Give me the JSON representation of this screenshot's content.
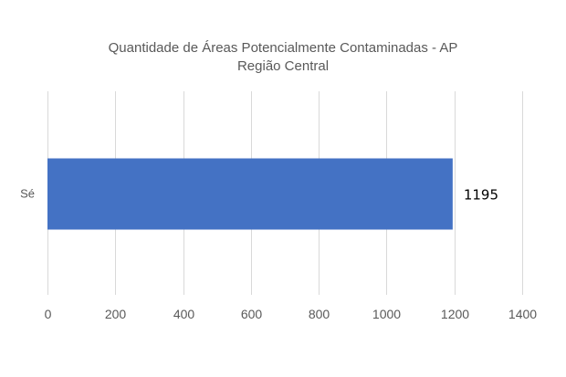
{
  "chart_data": {
    "type": "bar",
    "orientation": "horizontal",
    "title": "Quantidade de Áreas Potencialmente Contaminadas - AP",
    "subtitle": "Região Central",
    "categories": [
      "Sé"
    ],
    "values": [
      1195
    ],
    "data_labels": [
      "1195"
    ],
    "xlim": [
      0,
      1400
    ],
    "x_ticks": [
      0,
      200,
      400,
      600,
      800,
      1000,
      1200,
      1400
    ],
    "x_tick_labels": [
      "0",
      "200",
      "400",
      "600",
      "800",
      "1000",
      "1200",
      "1400"
    ],
    "grid": "vertical",
    "legend": "none",
    "bar_color": "#4472c4"
  }
}
